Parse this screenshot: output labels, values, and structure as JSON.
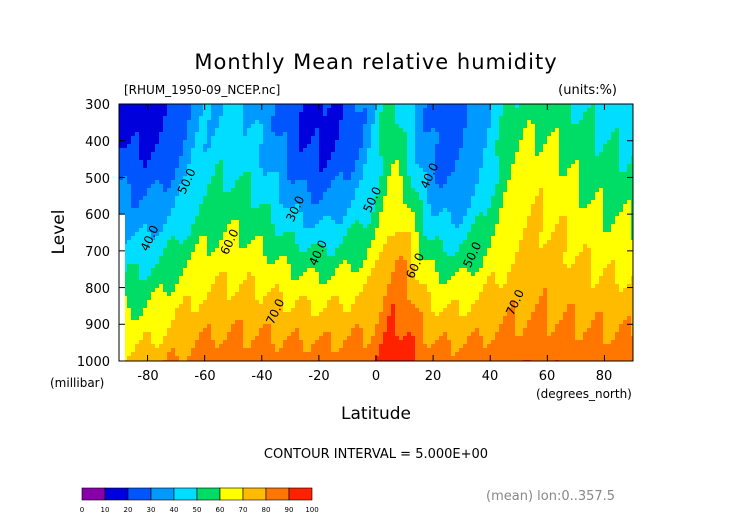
{
  "chart_data": {
    "type": "heatmap",
    "subtype": "filled-contour",
    "title": "Monthly Mean relative humidity",
    "file_label": "[RHUM_1950-09_NCEP.nc]",
    "units_label": "(units:%)",
    "ylabel": "Level",
    "ylabel_units": "(millibar)",
    "xlabel": "Latitude",
    "xlabel_units": "(degrees_north)",
    "y_ticks": [
      "300",
      "400",
      "500",
      "600",
      "700",
      "800",
      "900",
      "1000"
    ],
    "x_ticks": [
      "-80",
      "-60",
      "-40",
      "-20",
      "0",
      "20",
      "40",
      "60",
      "80"
    ],
    "xlim": [
      -90,
      90
    ],
    "ylim": [
      1000,
      300
    ],
    "contour_interval_text": "CONTOUR INTERVAL = 5.000E+00",
    "mean_text": "(mean) lon:0..357.5",
    "contour_labels": [
      {
        "text": "50.0",
        "lat": -65,
        "lev": 515
      },
      {
        "text": "40.0",
        "lat": -78,
        "lev": 670
      },
      {
        "text": "60.0",
        "lat": -50,
        "lev": 680
      },
      {
        "text": "30.0",
        "lat": -27,
        "lev": 590
      },
      {
        "text": "40.0",
        "lat": -19,
        "lev": 710
      },
      {
        "text": "50.0",
        "lat": 0,
        "lev": 565
      },
      {
        "text": "70.0",
        "lat": -34,
        "lev": 870
      },
      {
        "text": "60.0",
        "lat": 15,
        "lev": 745
      },
      {
        "text": "40.0",
        "lat": 20,
        "lev": 500
      },
      {
        "text": "50.0",
        "lat": 35,
        "lev": 715
      },
      {
        "text": "70.0",
        "lat": 50,
        "lev": 845
      }
    ],
    "colorbar": {
      "ticks": [
        "0",
        "10",
        "20",
        "30",
        "40",
        "50",
        "60",
        "70",
        "80",
        "90",
        "100"
      ],
      "colors": [
        "#8800aa",
        "#0000dd",
        "#0055ff",
        "#0099ff",
        "#00ddff",
        "#00dd66",
        "#ffff00",
        "#ffbb00",
        "#ff7700",
        "#ff2200"
      ]
    },
    "grid": false
  }
}
